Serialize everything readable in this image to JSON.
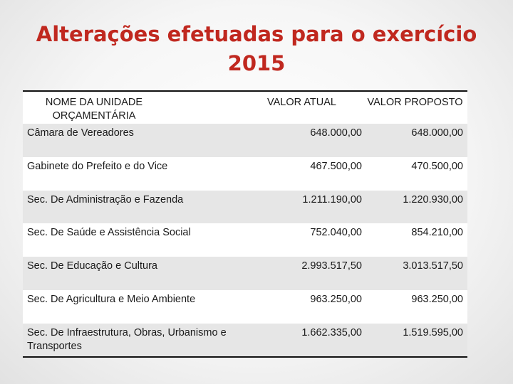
{
  "slide": {
    "title_line1": "Alterações efetuadas para o exercício",
    "title_line2": "2015"
  },
  "table": {
    "headers": {
      "unit": "NOME DA UNIDADE ORÇAMENTÁRIA",
      "current": "VALOR ATUAL",
      "proposed": "VALOR PROPOSTO"
    },
    "rows": [
      {
        "unit": "Câmara de Vereadores",
        "current": "648.000,00",
        "proposed": "648.000,00"
      },
      {
        "unit": "Gabinete do Prefeito e do Vice",
        "current": "467.500,00",
        "proposed": "470.500,00"
      },
      {
        "unit": "Sec. De Administração e Fazenda",
        "current": "1.211.190,00",
        "proposed": "1.220.930,00"
      },
      {
        "unit": "Sec. De Saúde e Assistência Social",
        "current": "752.040,00",
        "proposed": "854.210,00"
      },
      {
        "unit": "Sec. De Educação e Cultura",
        "current": "2.993.517,50",
        "proposed": "3.013.517,50"
      },
      {
        "unit": "Sec. De Agricultura e Meio Ambiente",
        "current": "963.250,00",
        "proposed": "963.250,00"
      },
      {
        "unit": "Sec. De Infraestrutura, Obras, Urbanismo e Transportes",
        "current": "1.662.335,00",
        "proposed": "1.519.595,00"
      }
    ]
  }
}
